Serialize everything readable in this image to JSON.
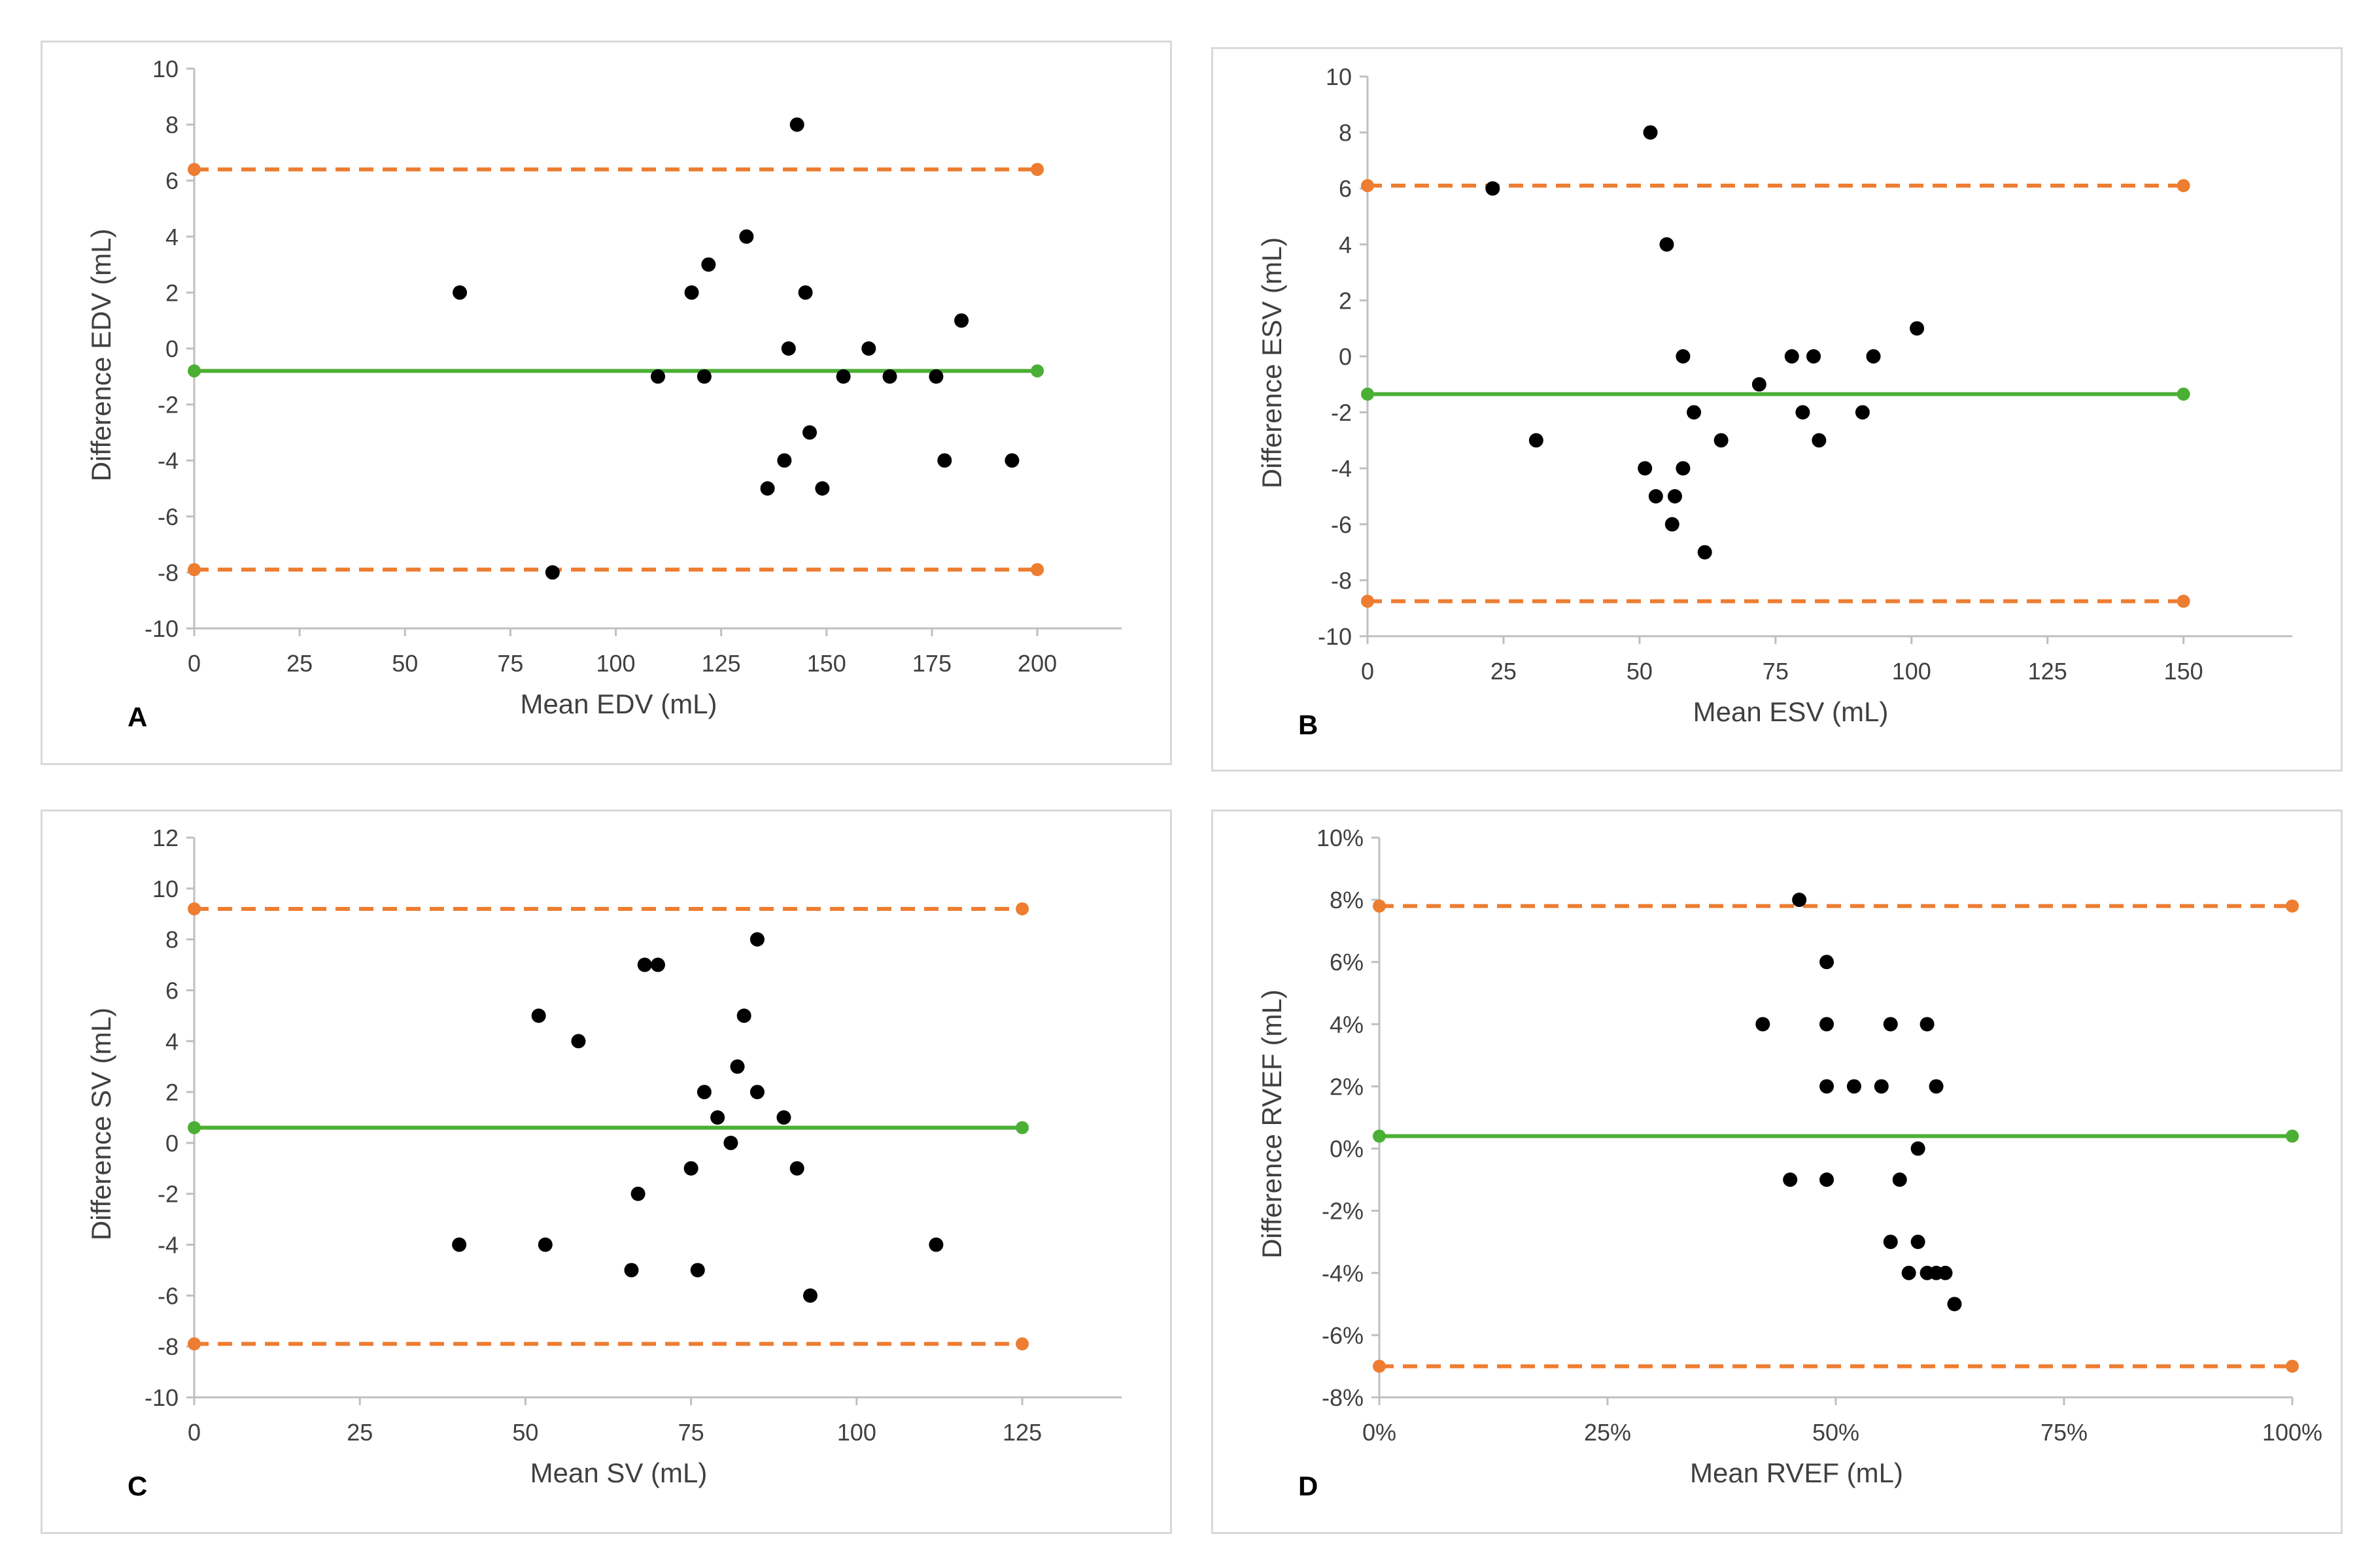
{
  "chart_data": [
    {
      "id": "A",
      "type": "scatter",
      "panel_label": "A",
      "xlabel": "Mean EDV (mL)",
      "ylabel": "Difference EDV (mL)",
      "xlim": [
        0,
        220
      ],
      "ylim": [
        -10,
        10
      ],
      "x_ticks": [
        0,
        25,
        50,
        75,
        100,
        125,
        150,
        175,
        200
      ],
      "x_tick_labels": [
        "0",
        "25",
        "50",
        "75",
        "100",
        "125",
        "150",
        "175",
        "200"
      ],
      "y_ticks": [
        -10,
        -8,
        -6,
        -4,
        -2,
        0,
        2,
        4,
        6,
        8,
        10
      ],
      "y_tick_labels": [
        "-10",
        "-8",
        "-6",
        "-4",
        "-2",
        "0",
        "2",
        "4",
        "6",
        "8",
        "10"
      ],
      "reference_lines": [
        {
          "name": "upper limit of agreement",
          "y": 6.4,
          "x_range": [
            0,
            200
          ],
          "style": "dashed",
          "color": "#ED7D31"
        },
        {
          "name": "mean difference",
          "y": -0.8,
          "x_range": [
            0,
            200
          ],
          "style": "solid",
          "color": "#4CAF35"
        },
        {
          "name": "lower limit of agreement",
          "y": -7.9,
          "x_range": [
            0,
            200
          ],
          "style": "dashed",
          "color": "#ED7D31"
        }
      ],
      "points": [
        [
          63,
          2
        ],
        [
          85,
          -8
        ],
        [
          110,
          -1
        ],
        [
          118,
          2
        ],
        [
          121,
          -1
        ],
        [
          122,
          3
        ],
        [
          131,
          4
        ],
        [
          136,
          -5
        ],
        [
          140,
          -4
        ],
        [
          141,
          0
        ],
        [
          143,
          8
        ],
        [
          145,
          2
        ],
        [
          146,
          -3
        ],
        [
          149,
          -5
        ],
        [
          154,
          -1
        ],
        [
          160,
          0
        ],
        [
          165,
          -1
        ],
        [
          176,
          -1
        ],
        [
          178,
          -4
        ],
        [
          182,
          1
        ],
        [
          194,
          -4
        ]
      ]
    },
    {
      "id": "B",
      "type": "scatter",
      "panel_label": "B",
      "xlabel": "Mean ESV (mL)",
      "ylabel": "Difference ESV (mL)",
      "xlim": [
        0,
        170
      ],
      "ylim": [
        -10,
        10
      ],
      "x_ticks": [
        0,
        25,
        50,
        75,
        100,
        125,
        150
      ],
      "x_tick_labels": [
        "0",
        "25",
        "50",
        "75",
        "100",
        "125",
        "150"
      ],
      "y_ticks": [
        -10,
        -8,
        -6,
        -4,
        -2,
        0,
        2,
        4,
        6,
        8,
        10
      ],
      "y_tick_labels": [
        "-10",
        "-8",
        "-6",
        "-4",
        "-2",
        "0",
        "2",
        "4",
        "6",
        "8",
        "10"
      ],
      "reference_lines": [
        {
          "name": "upper limit of agreement",
          "y": 6.1,
          "x_range": [
            0,
            150
          ],
          "style": "dashed",
          "color": "#ED7D31"
        },
        {
          "name": "mean difference",
          "y": -1.35,
          "x_range": [
            0,
            150
          ],
          "style": "solid",
          "color": "#4CAF35"
        },
        {
          "name": "lower limit of agreement",
          "y": -8.75,
          "x_range": [
            0,
            150
          ],
          "style": "dashed",
          "color": "#ED7D31"
        }
      ],
      "points": [
        [
          23,
          6
        ],
        [
          31,
          -3
        ],
        [
          51,
          -4
        ],
        [
          52,
          8
        ],
        [
          53,
          -5
        ],
        [
          55,
          4
        ],
        [
          56,
          -6
        ],
        [
          56.5,
          -5
        ],
        [
          58,
          -4
        ],
        [
          58,
          0
        ],
        [
          60,
          -2
        ],
        [
          62,
          -7
        ],
        [
          65,
          -3
        ],
        [
          72,
          -1
        ],
        [
          78,
          0
        ],
        [
          80,
          -2
        ],
        [
          82,
          0
        ],
        [
          83,
          -3
        ],
        [
          91,
          -2
        ],
        [
          93,
          0
        ],
        [
          101,
          1
        ]
      ]
    },
    {
      "id": "C",
      "type": "scatter",
      "panel_label": "C",
      "xlabel": "Mean SV (mL)",
      "ylabel": "Difference SV (mL)",
      "xlim": [
        0,
        140
      ],
      "ylim": [
        -10,
        12
      ],
      "x_ticks": [
        0,
        25,
        50,
        75,
        100,
        125
      ],
      "x_tick_labels": [
        "0",
        "25",
        "50",
        "75",
        "100",
        "125"
      ],
      "y_ticks": [
        -10,
        -8,
        -6,
        -4,
        -2,
        0,
        2,
        4,
        6,
        8,
        10,
        12
      ],
      "y_tick_labels": [
        "-10",
        "-8",
        "-6",
        "-4",
        "-2",
        "0",
        "2",
        "4",
        "6",
        "8",
        "10",
        "12"
      ],
      "reference_lines": [
        {
          "name": "upper limit of agreement",
          "y": 9.2,
          "x_range": [
            0,
            125
          ],
          "style": "dashed",
          "color": "#ED7D31"
        },
        {
          "name": "mean difference",
          "y": 0.6,
          "x_range": [
            0,
            125
          ],
          "style": "solid",
          "color": "#4CAF35"
        },
        {
          "name": "lower limit of agreement",
          "y": -7.9,
          "x_range": [
            0,
            125
          ],
          "style": "dashed",
          "color": "#ED7D31"
        }
      ],
      "points": [
        [
          40,
          -4
        ],
        [
          52,
          5
        ],
        [
          53,
          -4
        ],
        [
          58,
          4
        ],
        [
          66,
          -5
        ],
        [
          67,
          -2
        ],
        [
          68,
          7
        ],
        [
          70,
          7
        ],
        [
          75,
          -1
        ],
        [
          76,
          -5
        ],
        [
          77,
          2
        ],
        [
          79,
          1
        ],
        [
          81,
          0
        ],
        [
          82,
          3
        ],
        [
          83,
          5
        ],
        [
          85,
          2
        ],
        [
          85,
          8
        ],
        [
          89,
          1
        ],
        [
          91,
          -1
        ],
        [
          93,
          -6
        ],
        [
          112,
          -4
        ]
      ]
    },
    {
      "id": "D",
      "type": "scatter",
      "panel_label": "D",
      "xlabel": "Mean RVEF (mL)",
      "ylabel": "Difference RVEF (mL)",
      "xlim": [
        0,
        100
      ],
      "ylim": [
        -8,
        10
      ],
      "x_ticks": [
        0,
        25,
        50,
        75,
        100
      ],
      "x_tick_labels": [
        "0%",
        "25%",
        "50%",
        "75%",
        "100%"
      ],
      "y_ticks": [
        -8,
        -6,
        -4,
        -2,
        0,
        2,
        4,
        6,
        8,
        10
      ],
      "y_tick_labels": [
        "-8%",
        "-6%",
        "-4%",
        "-2%",
        "0%",
        "2%",
        "4%",
        "6%",
        "8%",
        "10%"
      ],
      "reference_lines": [
        {
          "name": "upper limit of agreement",
          "y": 7.8,
          "x_range": [
            0,
            100
          ],
          "style": "dashed",
          "color": "#ED7D31"
        },
        {
          "name": "mean difference",
          "y": 0.4,
          "x_range": [
            0,
            100
          ],
          "style": "solid",
          "color": "#4CAF35"
        },
        {
          "name": "lower limit of agreement",
          "y": -7.0,
          "x_range": [
            0,
            100
          ],
          "style": "dashed",
          "color": "#ED7D31"
        }
      ],
      "points": [
        [
          42,
          4
        ],
        [
          45,
          -1
        ],
        [
          46,
          8
        ],
        [
          49,
          6
        ],
        [
          49,
          4
        ],
        [
          49,
          2
        ],
        [
          49,
          -1
        ],
        [
          52,
          2
        ],
        [
          55,
          2
        ],
        [
          56,
          4
        ],
        [
          56,
          -3
        ],
        [
          57,
          -1
        ],
        [
          58,
          -4
        ],
        [
          59,
          0
        ],
        [
          59,
          -3
        ],
        [
          60,
          4
        ],
        [
          60,
          -4
        ],
        [
          61,
          2
        ],
        [
          61,
          -4
        ],
        [
          62,
          -4
        ],
        [
          63,
          -5
        ]
      ]
    }
  ]
}
